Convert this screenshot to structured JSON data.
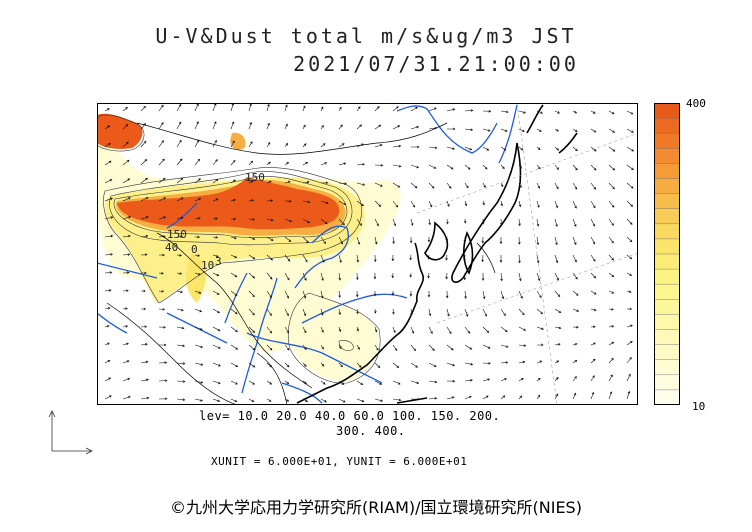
{
  "header": {
    "title": "U-V&Dust total m/s&ug/m3 JST",
    "datetime": "2021/07/31.21:00:00"
  },
  "colorbar": {
    "max_label": "400",
    "min_label": "10",
    "colors": [
      "#e85a1a",
      "#ec6a20",
      "#f07a28",
      "#f38b30",
      "#f59c38",
      "#f6ad42",
      "#f7bd4c",
      "#f8cc56",
      "#f9d960",
      "#fae46a",
      "#fbec76",
      "#fcf282",
      "#fdf58e",
      "#fdf79c",
      "#fef8aa",
      "#fef9b8",
      "#fefac6",
      "#fffbd3",
      "#fffce0",
      "#fffdec"
    ]
  },
  "levels": {
    "line1": "lev= 10.0 20.0 40.0 60.0 100. 150. 200.",
    "line2": "300. 400."
  },
  "units": "XUNIT = 6.000E+01, YUNIT = 6.000E+01",
  "contour_labels": [
    "150",
    "150",
    "40",
    "0",
    "10",
    "3"
  ],
  "copyright": "©九州大学応用力学研究所(RIAM)/国立環境研究所(NIES)"
}
